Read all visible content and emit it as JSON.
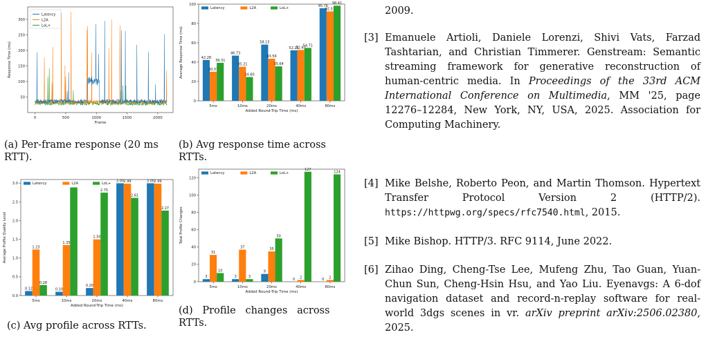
{
  "chart_data": [
    {
      "id": "a",
      "type": "line",
      "ylabel": "Response Time (ms)",
      "xlabel": "Frame",
      "x_ticks": [
        0,
        500,
        1000,
        1500,
        2000
      ],
      "y_ticks": [
        50,
        100,
        150,
        200,
        250,
        300
      ],
      "xlim": [
        -120,
        2250
      ],
      "ylim": [
        0,
        340
      ],
      "series": [
        {
          "name": "Latency",
          "color": "#1f77b4"
        },
        {
          "name": "L2A",
          "color": "#ff7f0e"
        },
        {
          "name": "LoL+",
          "color": "#2ca02c"
        }
      ]
    },
    {
      "id": "b",
      "type": "bar",
      "ylabel": "Average Response Time (ms)",
      "xlabel": "Added Round-Trip Time (ms)",
      "categories": [
        "5ms",
        "10ms",
        "20ms",
        "40ms",
        "80ms"
      ],
      "ylim": [
        0,
        100
      ],
      "y_ticks": [
        0,
        20,
        40,
        60,
        80,
        100
      ],
      "series": [
        {
          "name": "Latency",
          "color": "#1f77b4",
          "values": [
            42.28,
            46.73,
            58.15,
            52.25,
            95.76
          ]
        },
        {
          "name": "L2A",
          "color": "#ff7f0e",
          "values": [
            30.07,
            35.21,
            43.56,
            52.63,
            92.53
          ]
        },
        {
          "name": "LoL+",
          "color": "#2ca02c",
          "values": [
            39.31,
            24.6,
            35.64,
            54.71,
            98.41
          ]
        }
      ],
      "labels": [
        [
          "42.28",
          "46.73",
          "58.15",
          "52.25",
          "95.76"
        ],
        [
          "30.07",
          "35.21",
          "43.56",
          "52.63",
          "92.53"
        ],
        [
          "39.31",
          "24.60",
          "35.64",
          "54.71",
          "98.41"
        ]
      ]
    },
    {
      "id": "c",
      "type": "bar",
      "ylabel": "Average Profile Quality Level",
      "xlabel": "Added Round-Trip Time (ms)",
      "categories": [
        "5ms",
        "10ms",
        "20ms",
        "40ms",
        "80ms"
      ],
      "ylim": [
        0,
        3.1
      ],
      "y_ticks": [
        0.0,
        0.5,
        1.0,
        1.5,
        2.0,
        2.5,
        3.0
      ],
      "y_tick_labels": [
        "0.0",
        "0.5",
        "1.0",
        "1.5",
        "2.0",
        "2.5",
        "3.0"
      ],
      "series": [
        {
          "name": "Latency",
          "color": "#1f77b4",
          "values": [
            0.12,
            0.1,
            0.2,
            3.0,
            3.0
          ]
        },
        {
          "name": "L2A",
          "color": "#ff7f0e",
          "values": [
            1.23,
            1.35,
            1.5,
            2.99,
            2.99
          ]
        },
        {
          "name": "LoL+",
          "color": "#2ca02c",
          "values": [
            0.28,
            2.89,
            2.75,
            2.61,
            2.27
          ]
        }
      ],
      "labels": [
        [
          "0.12",
          "0.10",
          "0.20",
          "3.00",
          "3.00"
        ],
        [
          "1.23",
          "1.35",
          "1.50",
          "2.99",
          "2.99"
        ],
        [
          "0.28",
          "",
          "2.75",
          "2.61",
          "2.27"
        ]
      ]
    },
    {
      "id": "d",
      "type": "bar",
      "ylabel": "Total Profile Changes",
      "xlabel": "Added Round-Trip Time (ms)",
      "categories": [
        "5ms",
        "10ms",
        "20ms",
        "40ms",
        "80ms"
      ],
      "ylim": [
        0,
        130
      ],
      "y_ticks": [
        0,
        20,
        40,
        60,
        80,
        100,
        120
      ],
      "series": [
        {
          "name": "Latency",
          "color": "#1f77b4",
          "values": [
            3,
            3,
            9,
            0,
            0
          ]
        },
        {
          "name": "L2A",
          "color": "#ff7f0e",
          "values": [
            31,
            37,
            35,
            2,
            2
          ]
        },
        {
          "name": "LoL+",
          "color": "#2ca02c",
          "values": [
            10,
            3,
            50,
            127,
            124
          ]
        }
      ],
      "labels": [
        [
          "3",
          "3",
          "9",
          "0",
          "0"
        ],
        [
          "31",
          "37",
          "35",
          "2",
          "2"
        ],
        [
          "10",
          "3",
          "50",
          "127",
          "124"
        ]
      ]
    }
  ],
  "captions": {
    "a_line1": "(a) Per-frame response (20 ms",
    "a_line2": "RTT).",
    "b_line1": "(b) Avg response time across",
    "b_line2": "RTTs.",
    "c": "(c) Avg profile across RTTs.",
    "d_line1": "(d)   Profile   changes   across",
    "d_line2": "RTTs."
  },
  "references": {
    "prev_tail": "2009.",
    "r3": {
      "num": "[3]",
      "pre": "Emanuele Artioli, Daniele Lorenzi, Shivi Vats, Farzad Tashtarian, and Christian Timmerer. Genstream: Semantic streaming framework for generative reconstruction of human-centric media. In ",
      "venue": "Proceedings of the 33rd ACM International Conference on Multimedia",
      "post": ", MM '25, page 12276–12284, New York, NY, USA, 2025. Association for Computing Machinery."
    },
    "r4": {
      "num": "[4]",
      "pre": "Mike Belshe, Roberto Peon, and Martin Thomson. Hypertext Transfer Protocol Version 2 (HTTP/2). ",
      "url": "https://httpwg.org/specs/rfc7540.html",
      "post": ", 2015."
    },
    "r5": {
      "num": "[5]",
      "text": "Mike Bishop. HTTP/3. RFC 9114, June 2022."
    },
    "r6": {
      "num": "[6]",
      "pre": "Zihao Ding, Cheng-Tse Lee, Mufeng Zhu, Tao Guan, Yuan-Chun Sun, Cheng-Hsin Hsu, and Yao Liu. Eyenavgs: A 6-dof navigation dataset and record-n-replay software for real-world 3dgs scenes in vr. ",
      "venue": "arXiv preprint arXiv:2506.02380",
      "post": ", 2025."
    }
  }
}
